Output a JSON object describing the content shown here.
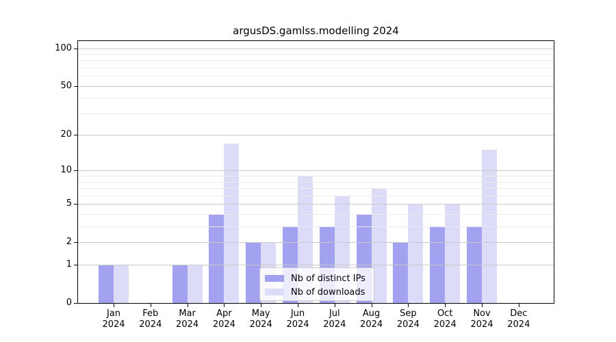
{
  "page": {
    "background": "#ffffff"
  },
  "chart_data": {
    "type": "bar",
    "title": "argusDS.gamlss.modelling 2024",
    "categories": [
      "Jan 2024",
      "Feb 2024",
      "Mar 2024",
      "Apr 2024",
      "May 2024",
      "Jun 2024",
      "Jul 2024",
      "Aug 2024",
      "Sep 2024",
      "Oct 2024",
      "Nov 2024",
      "Dec 2024"
    ],
    "series": [
      {
        "name": "Nb of distinct IPs",
        "color": "#a2a2f0",
        "values": [
          1,
          0,
          1,
          4,
          2,
          3,
          3,
          4,
          2,
          3,
          3,
          0
        ]
      },
      {
        "name": "Nb of downloads",
        "color": "#dcdcf8",
        "values": [
          1,
          0,
          1,
          17,
          2,
          9,
          6,
          7,
          5,
          5,
          15,
          0
        ]
      }
    ],
    "xlabel": "",
    "ylabel": "",
    "yscale": "log1p",
    "ylim": [
      0,
      114
    ],
    "yticks": [
      0,
      1,
      2,
      5,
      10,
      20,
      50,
      100
    ],
    "yticks_minor": [
      3,
      4,
      6,
      7,
      8,
      9,
      30,
      40,
      60,
      70,
      80,
      90
    ],
    "grid": "on",
    "grid_above_bars": true,
    "legend_position": "inside-lower-center",
    "colors": {
      "grid_major": "#c9c9c9",
      "grid_minor": "#ebebeb",
      "axis": "#000000",
      "text": "#000000",
      "legend_border": "#cccccc",
      "legend_bg": "rgba(255,255,255,0.8)"
    }
  }
}
